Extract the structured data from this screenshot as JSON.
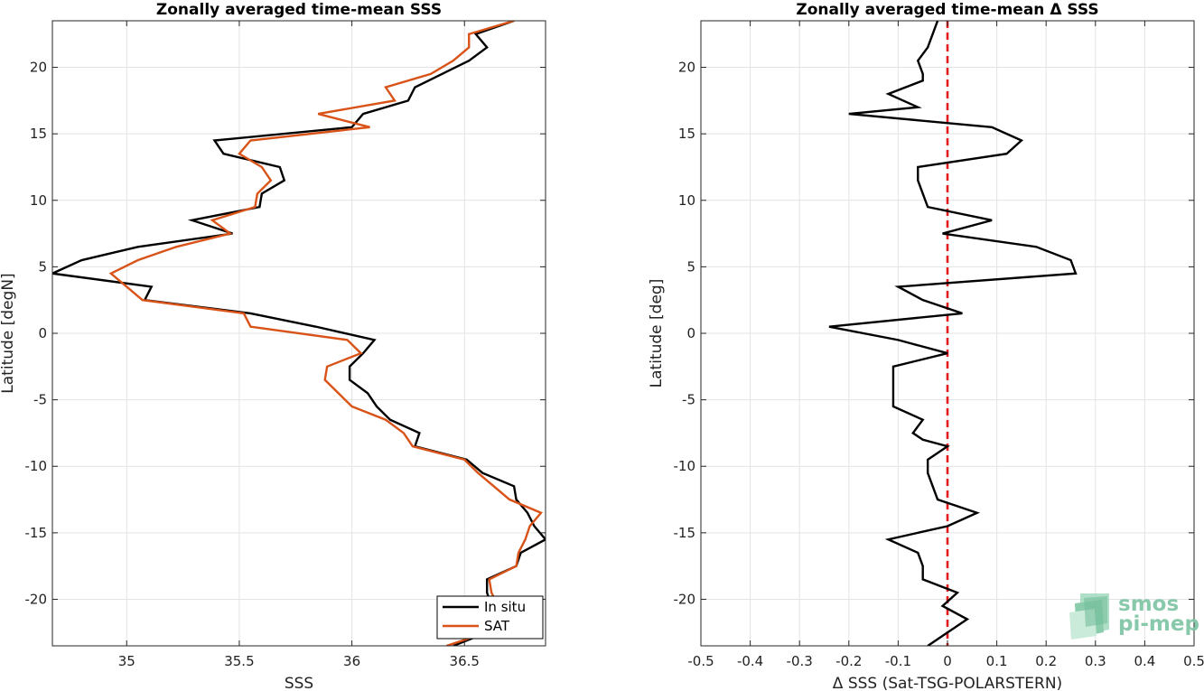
{
  "chart_data": [
    {
      "type": "line",
      "title": "Zonally averaged time-mean SSS",
      "xlabel": "SSS",
      "ylabel": "Latitude [degN]",
      "xlim": [
        34.67,
        36.86
      ],
      "ylim": [
        -23.5,
        23.5
      ],
      "xticks": [
        35,
        35.5,
        36,
        36.5
      ],
      "xtick_labels": [
        "35",
        "35.5",
        "36",
        "36.5"
      ],
      "yticks": [
        -20,
        -15,
        -10,
        -5,
        0,
        5,
        10,
        15,
        20
      ],
      "ytick_labels": [
        "-20",
        "-15",
        "-10",
        "-5",
        "0",
        "5",
        "10",
        "15",
        "20"
      ],
      "grid": true,
      "legend": "bottom-right",
      "series": [
        {
          "name": "In situ",
          "color": "#000000",
          "points": [
            [
              36.72,
              23.5
            ],
            [
              36.55,
              22.5
            ],
            [
              36.6,
              21.5
            ],
            [
              36.52,
              20.5
            ],
            [
              36.4,
              19.5
            ],
            [
              36.28,
              18.5
            ],
            [
              36.25,
              17.5
            ],
            [
              36.05,
              16.5
            ],
            [
              36.0,
              15.5
            ],
            [
              35.39,
              14.5
            ],
            [
              35.43,
              13.5
            ],
            [
              35.68,
              12.5
            ],
            [
              35.7,
              11.5
            ],
            [
              35.6,
              10.5
            ],
            [
              35.59,
              9.5
            ],
            [
              35.29,
              8.5
            ],
            [
              35.47,
              7.5
            ],
            [
              35.05,
              6.5
            ],
            [
              34.8,
              5.5
            ],
            [
              34.67,
              4.5
            ],
            [
              35.11,
              3.5
            ],
            [
              35.08,
              2.5
            ],
            [
              35.55,
              1.5
            ],
            [
              35.84,
              0.5
            ],
            [
              36.1,
              -0.5
            ],
            [
              36.05,
              -1.5
            ],
            [
              35.99,
              -2.5
            ],
            [
              35.99,
              -3.5
            ],
            [
              36.07,
              -4.5
            ],
            [
              36.11,
              -5.5
            ],
            [
              36.17,
              -6.5
            ],
            [
              36.3,
              -7.5
            ],
            [
              36.28,
              -8.5
            ],
            [
              36.51,
              -9.5
            ],
            [
              36.58,
              -10.5
            ],
            [
              36.72,
              -11.5
            ],
            [
              36.73,
              -12.5
            ],
            [
              36.78,
              -13.5
            ],
            [
              36.81,
              -14.5
            ],
            [
              36.86,
              -15.5
            ],
            [
              36.75,
              -16.5
            ],
            [
              36.73,
              -17.5
            ],
            [
              36.6,
              -18.5
            ],
            [
              36.6,
              -19.5
            ],
            [
              36.62,
              -20.5
            ],
            [
              36.65,
              -21.5
            ],
            [
              36.6,
              -22.5
            ],
            [
              36.45,
              -23.5
            ]
          ]
        },
        {
          "name": "SAT",
          "color": "#d95319",
          "points": [
            [
              36.72,
              23.5
            ],
            [
              36.52,
              22.5
            ],
            [
              36.52,
              21.5
            ],
            [
              36.45,
              20.5
            ],
            [
              36.35,
              19.5
            ],
            [
              36.15,
              18.5
            ],
            [
              36.19,
              17.5
            ],
            [
              35.85,
              16.5
            ],
            [
              36.08,
              15.5
            ],
            [
              35.55,
              14.5
            ],
            [
              35.5,
              13.5
            ],
            [
              35.6,
              12.5
            ],
            [
              35.64,
              11.5
            ],
            [
              35.58,
              10.5
            ],
            [
              35.57,
              9.5
            ],
            [
              35.38,
              8.5
            ],
            [
              35.46,
              7.5
            ],
            [
              35.22,
              6.5
            ],
            [
              35.05,
              5.5
            ],
            [
              34.93,
              4.5
            ],
            [
              35.0,
              3.5
            ],
            [
              35.07,
              2.5
            ],
            [
              35.52,
              1.5
            ],
            [
              35.55,
              0.5
            ],
            [
              35.98,
              -0.5
            ],
            [
              36.04,
              -1.5
            ],
            [
              35.89,
              -2.5
            ],
            [
              35.88,
              -3.5
            ],
            [
              35.94,
              -4.5
            ],
            [
              36.0,
              -5.5
            ],
            [
              36.15,
              -6.5
            ],
            [
              36.23,
              -7.5
            ],
            [
              36.27,
              -8.5
            ],
            [
              36.5,
              -9.5
            ],
            [
              36.56,
              -10.5
            ],
            [
              36.63,
              -11.5
            ],
            [
              36.7,
              -12.5
            ],
            [
              36.84,
              -13.5
            ],
            [
              36.79,
              -14.5
            ],
            [
              36.77,
              -15.5
            ],
            [
              36.74,
              -16.5
            ],
            [
              36.73,
              -17.5
            ],
            [
              36.61,
              -18.5
            ],
            [
              36.62,
              -19.5
            ],
            [
              36.65,
              -20.5
            ],
            [
              36.65,
              -21.5
            ],
            [
              36.6,
              -22.5
            ],
            [
              36.42,
              -23.5
            ]
          ]
        }
      ]
    },
    {
      "type": "line",
      "title": "Zonally averaged time-mean Δ SSS",
      "xlabel": "Δ SSS (Sat-TSG-POLARSTERN)",
      "ylabel": "Latitude [deg]",
      "xlim": [
        -0.5,
        0.5
      ],
      "ylim": [
        -23.5,
        23.5
      ],
      "xticks": [
        -0.5,
        -0.4,
        -0.3,
        -0.2,
        -0.1,
        0,
        0.1,
        0.2,
        0.3,
        0.4,
        0.5
      ],
      "xtick_labels": [
        "-0.5",
        "-0.4",
        "-0.3",
        "-0.2",
        "-0.1",
        "0",
        "0.1",
        "0.2",
        "0.3",
        "0.4",
        "0.5"
      ],
      "yticks": [
        -20,
        -15,
        -10,
        -5,
        0,
        5,
        10,
        15,
        20
      ],
      "ytick_labels": [
        "-20",
        "-15",
        "-10",
        "-5",
        "0",
        "5",
        "10",
        "15",
        "20"
      ],
      "grid": true,
      "reference_line": {
        "x": 0,
        "color": "#e41a1c",
        "style": "dashed"
      },
      "series": [
        {
          "color": "#000000",
          "points": [
            [
              -0.02,
              23.5
            ],
            [
              -0.03,
              22.5
            ],
            [
              -0.04,
              21.5
            ],
            [
              -0.06,
              20.5
            ],
            [
              -0.05,
              19.5
            ],
            [
              -0.05,
              19.0
            ],
            [
              -0.12,
              18.0
            ],
            [
              -0.06,
              17.0
            ],
            [
              -0.2,
              16.5
            ],
            [
              0.09,
              15.5
            ],
            [
              0.15,
              14.5
            ],
            [
              0.12,
              13.5
            ],
            [
              -0.06,
              12.5
            ],
            [
              -0.06,
              11.5
            ],
            [
              -0.05,
              10.5
            ],
            [
              -0.04,
              9.5
            ],
            [
              0.09,
              8.5
            ],
            [
              -0.01,
              7.5
            ],
            [
              0.18,
              6.5
            ],
            [
              0.25,
              5.5
            ],
            [
              0.26,
              4.5
            ],
            [
              -0.1,
              3.5
            ],
            [
              -0.05,
              2.5
            ],
            [
              0.03,
              1.5
            ],
            [
              -0.24,
              0.5
            ],
            [
              -0.1,
              -0.5
            ],
            [
              0.0,
              -1.5
            ],
            [
              -0.11,
              -2.5
            ],
            [
              -0.11,
              -3.5
            ],
            [
              -0.11,
              -4.5
            ],
            [
              -0.11,
              -5.5
            ],
            [
              -0.05,
              -6.5
            ],
            [
              -0.07,
              -7.5
            ],
            [
              -0.05,
              -8.0
            ],
            [
              0.0,
              -8.5
            ],
            [
              -0.04,
              -9.5
            ],
            [
              -0.04,
              -10.5
            ],
            [
              -0.03,
              -11.5
            ],
            [
              -0.02,
              -12.5
            ],
            [
              0.06,
              -13.5
            ],
            [
              0.0,
              -14.5
            ],
            [
              -0.12,
              -15.5
            ],
            [
              -0.06,
              -16.5
            ],
            [
              -0.05,
              -17.5
            ],
            [
              -0.05,
              -18.5
            ],
            [
              0.02,
              -19.5
            ],
            [
              -0.01,
              -20.5
            ],
            [
              0.04,
              -21.5
            ],
            [
              -0.04,
              -23.5
            ]
          ]
        }
      ]
    }
  ],
  "legend": {
    "insitu_label": "In situ",
    "sat_label": "SAT"
  },
  "logo": {
    "line1": "smos",
    "line2": "pi-mep"
  }
}
